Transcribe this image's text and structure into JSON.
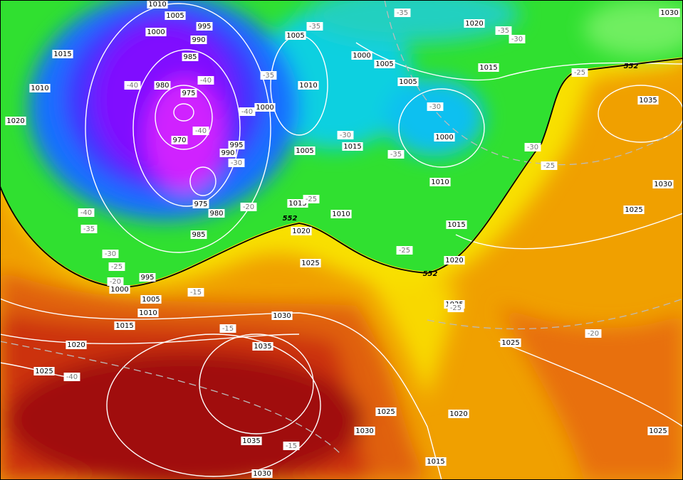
{
  "pressure_labels": [
    "1010",
    "1005",
    "1000",
    "995",
    "990",
    "985",
    "980",
    "975",
    "970",
    "995",
    "990",
    "975",
    "980",
    "985",
    "1000",
    "1005",
    "1000",
    "1005",
    "1010",
    "1005",
    "1015",
    "1005",
    "1000",
    "1010",
    "1015",
    "1020",
    "1015",
    "1035",
    "1030",
    "1025",
    "1030",
    "1015",
    "1010",
    "1020",
    "1015",
    "1010",
    "1020",
    "1025",
    "995",
    "1000",
    "1005",
    "1010",
    "1015",
    "1020",
    "1025",
    "1030",
    "1035",
    "1020",
    "1025",
    "1025",
    "1025",
    "1020",
    "1030",
    "1035",
    "1015",
    "1030",
    "1025"
  ],
  "temperature_labels": [
    "-35",
    "-35",
    "-35",
    "-30",
    "-25",
    "-40",
    "-40",
    "-35",
    "-40",
    "-30",
    "-40",
    "-30",
    "-35",
    "-30",
    "-25",
    "-30",
    "-20",
    "-25",
    "-40",
    "-35",
    "-30",
    "-25",
    "-20",
    "-15",
    "-15",
    "-40",
    "-25",
    "-15",
    "-20",
    "-25"
  ],
  "thickness_labels": [
    "552",
    "552",
    "552"
  ]
}
